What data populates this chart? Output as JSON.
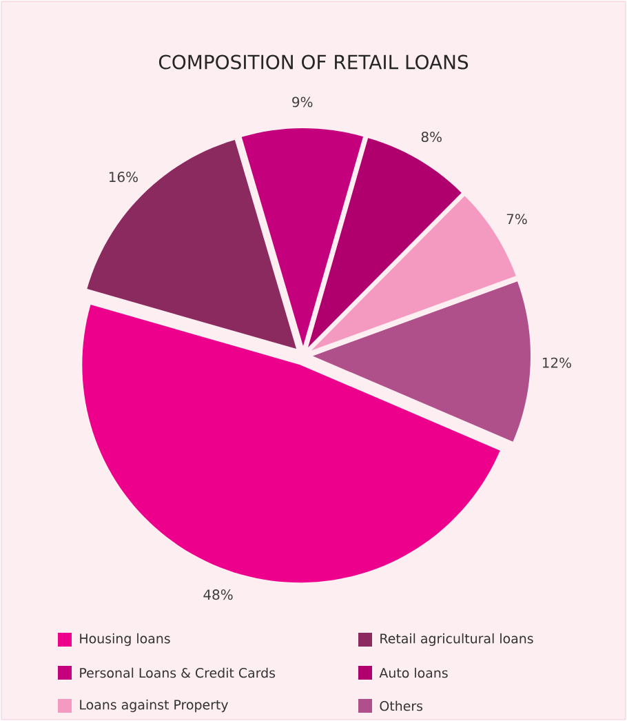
{
  "chart_data": {
    "type": "pie",
    "title": "COMPOSITION OF RETAIL LOANS",
    "categories": [
      "Housing loans",
      "Retail agricultural loans",
      "Personal Loans & Credit Cards",
      "Auto loans",
      "Loans against Property",
      "Others"
    ],
    "values": [
      48,
      16,
      9,
      8,
      7,
      12
    ],
    "colors": [
      "#ec008c",
      "#8b2a5e",
      "#c4007c",
      "#b0006e",
      "#f49ac1",
      "#b0508a"
    ],
    "value_labels": [
      "48%",
      "16%",
      "9%",
      "8%",
      "7%",
      "12%"
    ],
    "legend": "bottom"
  }
}
